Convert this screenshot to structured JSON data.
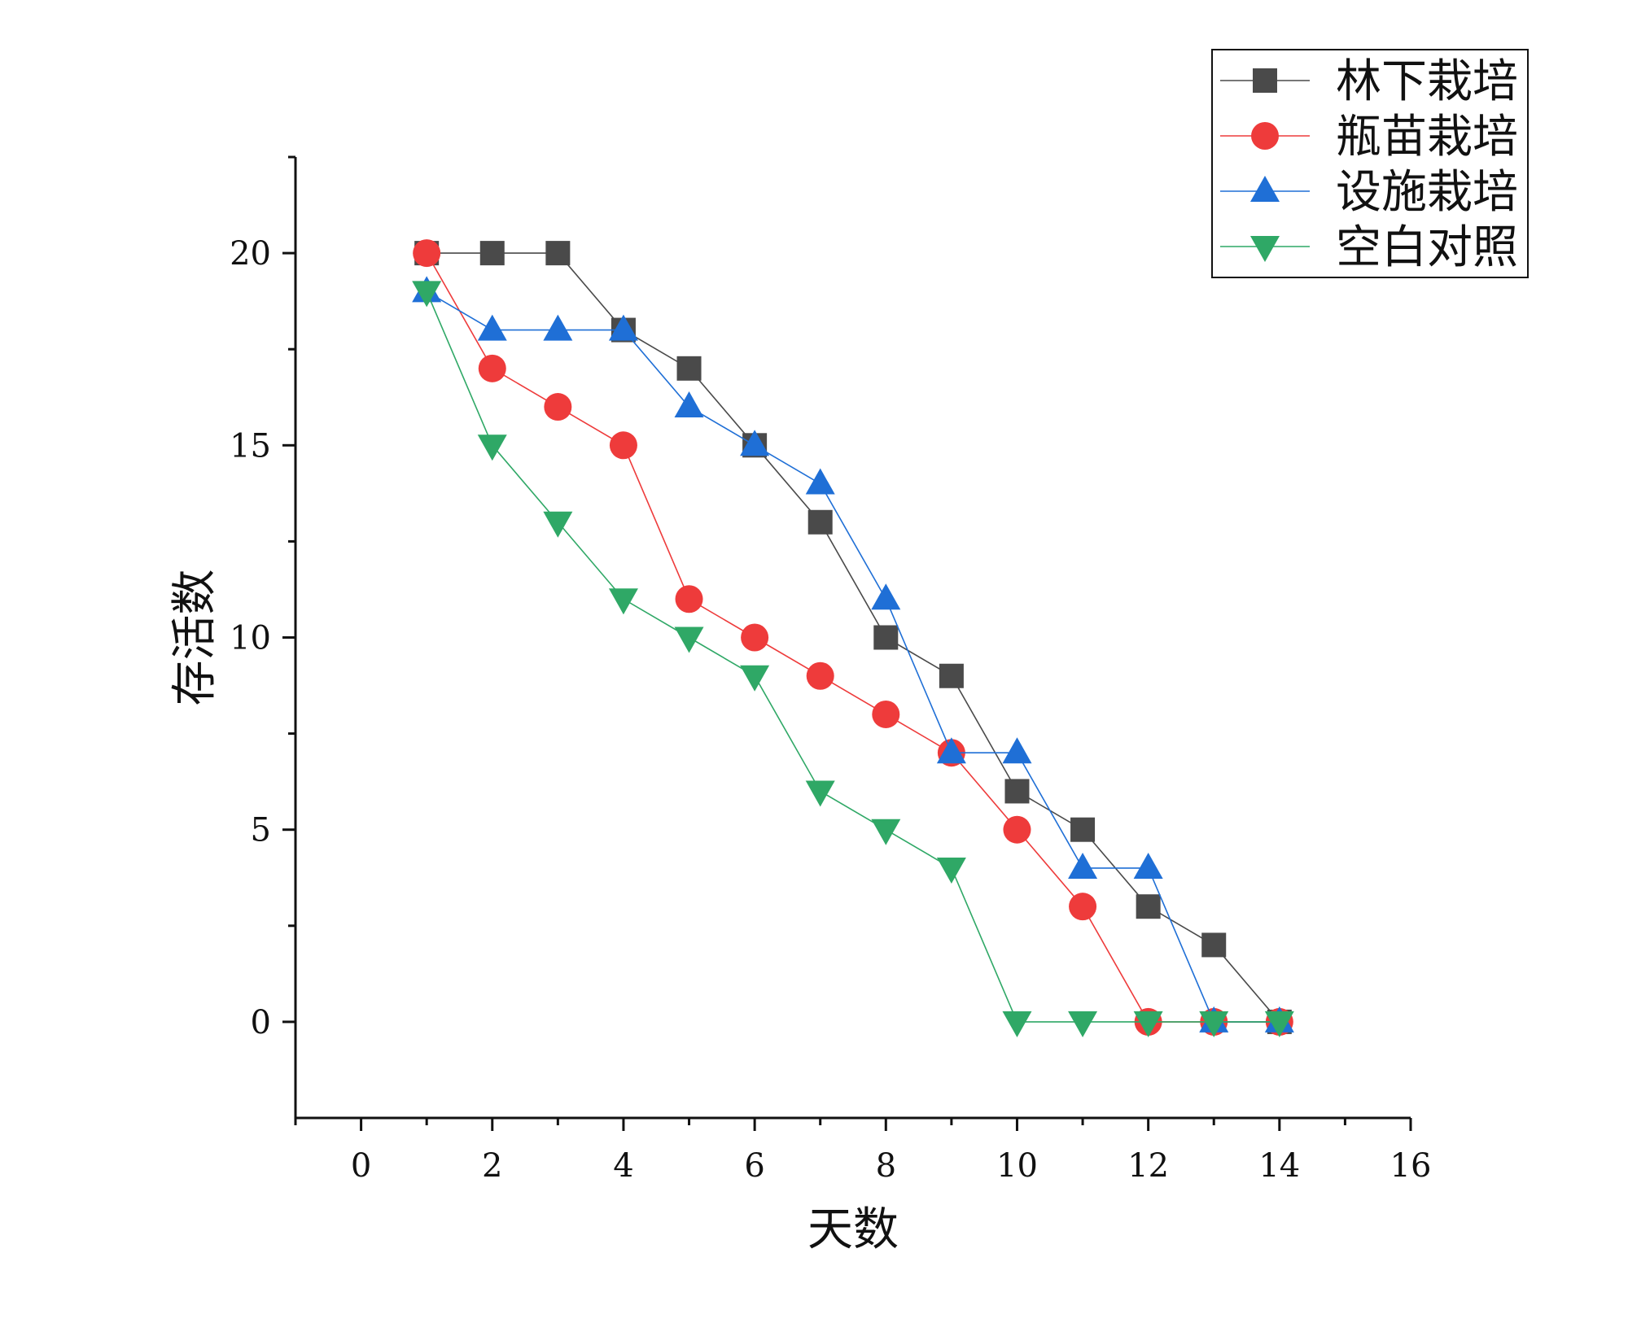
{
  "chart_data": {
    "type": "line",
    "xlabel": "天数",
    "ylabel": "存活数",
    "xlim": [
      -1,
      16
    ],
    "ylim": [
      -2.5,
      22.5
    ],
    "x_ticks": [
      0,
      2,
      4,
      6,
      8,
      10,
      12,
      14,
      16
    ],
    "y_ticks": [
      0,
      5,
      10,
      15,
      20
    ],
    "x_tick_labels": [
      "0",
      "2",
      "4",
      "6",
      "8",
      "10",
      "12",
      "14",
      "16"
    ],
    "y_tick_labels": [
      "0",
      "5",
      "10",
      "15",
      "20"
    ],
    "grid": false,
    "legend_position": "top-right",
    "x": [
      1,
      2,
      3,
      4,
      5,
      6,
      7,
      8,
      9,
      10,
      11,
      12,
      13,
      14
    ],
    "series": [
      {
        "name": "林下栽培",
        "color": "#4a4a4a",
        "marker": "square",
        "values": [
          20,
          20,
          20,
          18,
          17,
          15,
          13,
          10,
          9,
          6,
          5,
          3,
          2,
          0
        ]
      },
      {
        "name": "瓶苗栽培",
        "color": "#ee3b3b",
        "marker": "circle",
        "values": [
          20,
          17,
          16,
          15,
          11,
          10,
          9,
          8,
          7,
          5,
          3,
          0,
          0,
          0
        ]
      },
      {
        "name": "设施栽培",
        "color": "#1f6fd6",
        "marker": "triangle-up",
        "values": [
          19,
          18,
          18,
          18,
          16,
          15,
          14,
          11,
          7,
          7,
          4,
          4,
          0,
          0
        ]
      },
      {
        "name": "空白对照",
        "color": "#2fa866",
        "marker": "triangle-down",
        "values": [
          19,
          15,
          13,
          11,
          10,
          9,
          6,
          5,
          4,
          0,
          0,
          0,
          0,
          0
        ]
      }
    ]
  }
}
